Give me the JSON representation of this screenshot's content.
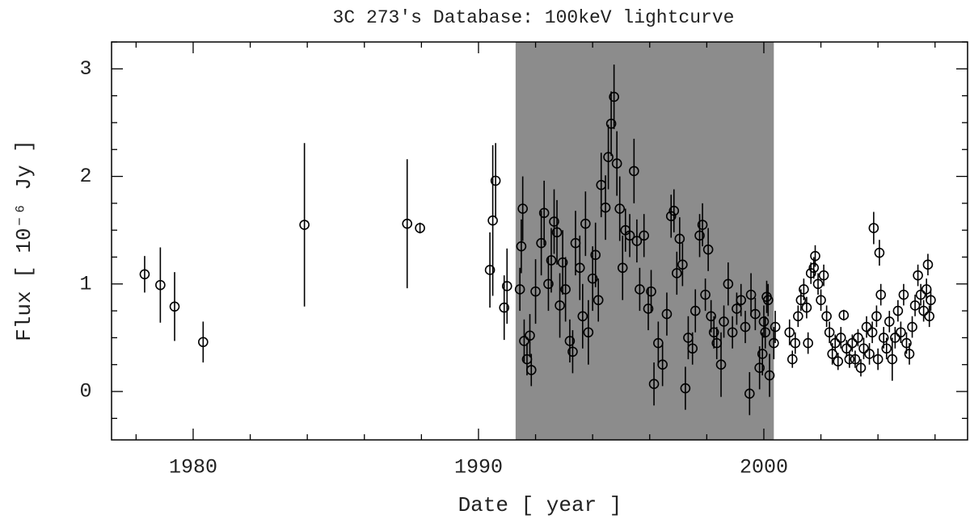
{
  "chart_data": {
    "type": "scatter",
    "title": "3C 273's Database: 100keV lightcurve",
    "xlabel": "Date [ year ]",
    "ylabel": "Flux [ 10⁻⁶ Jy ]",
    "xlim": [
      1977.14,
      2007.14
    ],
    "ylim": [
      -0.45,
      3.25
    ],
    "xticks": [
      1980,
      1990,
      2000
    ],
    "yticks": [
      0,
      1,
      2,
      3
    ],
    "xticks_minor": [
      1978,
      1982,
      1984,
      1986,
      1988,
      1992,
      1994,
      1996,
      1998,
      2002,
      2004,
      2006
    ],
    "yticks_minor": [
      -0.25,
      0.25,
      0.5,
      0.75,
      1.25,
      1.5,
      1.75,
      2.25,
      2.5,
      2.75,
      3.25
    ],
    "shaded_xrange": [
      1991.3,
      2000.35
    ],
    "shaded_color": "#8c8c8c",
    "series": [
      {
        "color": "#000000",
        "x": [
          1978.3,
          1978.85,
          1979.35,
          1980.35,
          1983.9,
          1987.5,
          1987.95,
          1990.4,
          1990.5,
          1990.6,
          1990.9,
          1991.0,
          1991.45,
          1991.5,
          1991.55,
          1991.6,
          1991.7,
          1991.8,
          1991.85,
          1992.0,
          1992.2,
          1992.3,
          1992.45,
          1992.55,
          1992.65,
          1992.75,
          1992.85,
          1992.95,
          1993.05,
          1993.2,
          1993.3,
          1993.4,
          1993.55,
          1993.65,
          1993.75,
          1993.85,
          1994.0,
          1994.1,
          1994.2,
          1994.3,
          1994.45,
          1994.55,
          1994.65,
          1994.75,
          1994.85,
          1994.95,
          1995.05,
          1995.15,
          1995.3,
          1995.45,
          1995.55,
          1995.65,
          1995.8,
          1995.95,
          1996.05,
          1996.15,
          1996.3,
          1996.45,
          1996.6,
          1996.75,
          1996.85,
          1996.95,
          1997.05,
          1997.15,
          1997.25,
          1997.35,
          1997.5,
          1997.6,
          1997.75,
          1997.85,
          1997.95,
          1998.05,
          1998.15,
          1998.25,
          1998.35,
          1998.5,
          1998.6,
          1998.75,
          1998.9,
          1999.05,
          1999.2,
          1999.35,
          1999.55,
          1999.7,
          1999.85,
          1999.95,
          2000.1,
          1999.5,
          2000.0,
          2000.05,
          2000.15,
          2000.2,
          2000.35,
          2000.4,
          2000.9,
          2001.0,
          2001.1,
          2001.2,
          2001.3,
          2001.4,
          2001.5,
          2001.55,
          2001.65,
          2001.75,
          2001.8,
          2001.9,
          2002.0,
          2002.1,
          2002.2,
          2002.3,
          2002.4,
          2002.5,
          2002.6,
          2002.7,
          2002.8,
          2002.9,
          2003.0,
          2003.1,
          2003.2,
          2003.3,
          2003.4,
          2003.5,
          2003.6,
          2003.7,
          2003.8,
          2003.85,
          2003.95,
          2004.0,
          2004.05,
          2004.1,
          2004.2,
          2004.3,
          2004.4,
          2004.5,
          2004.6,
          2004.7,
          2004.8,
          2004.9,
          2005.0,
          2005.1,
          2005.2,
          2005.3,
          2005.4,
          2005.5,
          2005.6,
          2005.7,
          2005.75,
          2005.8,
          2005.85
        ],
        "values": [
          1.09,
          0.99,
          0.79,
          0.46,
          1.55,
          1.56,
          1.52,
          1.13,
          1.59,
          1.96,
          0.78,
          0.98,
          0.95,
          1.35,
          1.7,
          0.47,
          0.3,
          0.52,
          0.2,
          0.93,
          1.38,
          1.66,
          1.0,
          1.22,
          1.58,
          1.48,
          0.8,
          1.2,
          0.95,
          0.47,
          0.37,
          1.38,
          1.15,
          0.7,
          1.56,
          0.55,
          1.05,
          1.27,
          0.85,
          1.92,
          1.71,
          2.18,
          2.49,
          2.74,
          2.12,
          1.7,
          1.15,
          1.5,
          1.45,
          2.05,
          1.4,
          0.95,
          1.45,
          0.77,
          0.93,
          0.07,
          0.45,
          0.25,
          0.72,
          1.63,
          1.68,
          1.1,
          1.42,
          1.18,
          0.03,
          0.5,
          0.4,
          0.75,
          1.45,
          1.55,
          0.9,
          1.32,
          0.7,
          0.55,
          0.45,
          0.25,
          0.65,
          1.0,
          0.55,
          0.77,
          0.85,
          0.6,
          0.9,
          0.72,
          0.22,
          0.35,
          0.88,
          -0.02,
          0.65,
          0.55,
          0.85,
          0.15,
          0.45,
          0.6,
          0.55,
          0.3,
          0.45,
          0.7,
          0.85,
          0.95,
          0.78,
          0.45,
          1.1,
          1.15,
          1.26,
          1.0,
          0.85,
          1.08,
          0.7,
          0.55,
          0.35,
          0.45,
          0.28,
          0.5,
          0.71,
          0.4,
          0.3,
          0.45,
          0.3,
          0.5,
          0.22,
          0.4,
          0.6,
          0.35,
          0.55,
          1.52,
          0.7,
          0.3,
          1.29,
          0.9,
          0.5,
          0.4,
          0.65,
          0.3,
          0.5,
          0.75,
          0.55,
          0.9,
          0.45,
          0.35,
          0.6,
          0.8,
          1.08,
          0.9,
          0.75,
          0.95,
          1.18,
          0.7,
          0.85
        ],
        "errors": [
          0.17,
          0.35,
          0.32,
          0.19,
          0.76,
          0.6,
          0.05,
          0.35,
          0.7,
          0.35,
          0.3,
          0.35,
          0.2,
          0.25,
          0.3,
          0.2,
          0.15,
          0.2,
          0.15,
          0.3,
          0.3,
          0.3,
          0.25,
          0.3,
          0.3,
          0.3,
          0.3,
          0.3,
          0.3,
          0.2,
          0.2,
          0.3,
          0.3,
          0.3,
          0.3,
          0.3,
          0.3,
          0.3,
          0.2,
          0.3,
          0.3,
          0.3,
          0.3,
          0.3,
          0.3,
          0.3,
          0.3,
          0.2,
          0.2,
          0.3,
          0.2,
          0.2,
          0.2,
          0.2,
          0.2,
          0.2,
          0.2,
          0.2,
          0.2,
          0.2,
          0.2,
          0.2,
          0.2,
          0.2,
          0.2,
          0.2,
          0.15,
          0.2,
          0.2,
          0.2,
          0.15,
          0.2,
          0.15,
          0.15,
          0.15,
          0.3,
          0.15,
          0.2,
          0.15,
          0.15,
          0.15,
          0.15,
          0.2,
          0.15,
          0.2,
          0.2,
          0.15,
          0.2,
          0.15,
          0.15,
          0.15,
          0.2,
          0.15,
          0.15,
          0.12,
          0.08,
          0.1,
          0.1,
          0.1,
          0.1,
          0.1,
          0.1,
          0.1,
          0.1,
          0.1,
          0.1,
          0.1,
          0.1,
          0.1,
          0.1,
          0.1,
          0.08,
          0.08,
          0.1,
          0.05,
          0.08,
          0.08,
          0.08,
          0.08,
          0.08,
          0.08,
          0.1,
          0.1,
          0.1,
          0.1,
          0.15,
          0.1,
          0.1,
          0.12,
          0.1,
          0.1,
          0.1,
          0.1,
          0.2,
          0.1,
          0.1,
          0.1,
          0.1,
          0.1,
          0.1,
          0.1,
          0.1,
          0.1,
          0.1,
          0.1,
          0.1,
          0.1,
          0.1,
          0.1
        ]
      }
    ]
  }
}
